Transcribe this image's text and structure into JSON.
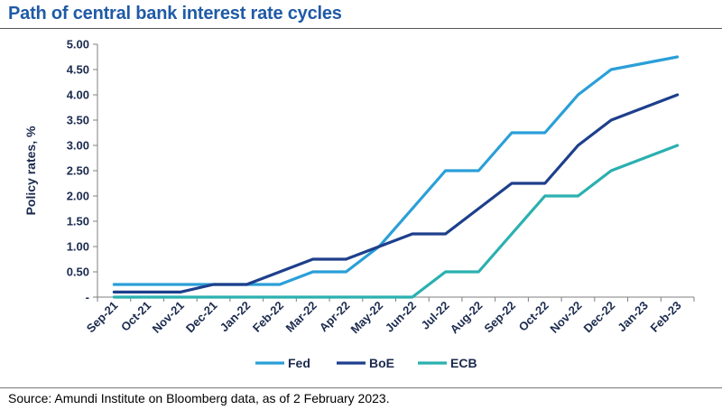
{
  "title": "Path of central bank interest rate cycles",
  "source": "Source: Amundi Institute on Bloomberg data, as of 2 February 2023.",
  "chart_data": {
    "type": "line",
    "title": "Path of central bank interest rate cycles",
    "xlabel": "",
    "ylabel": "Policy rates, %",
    "ylim": [
      0,
      5
    ],
    "yticks": [
      0,
      0.5,
      1.0,
      1.5,
      2.0,
      2.5,
      3.0,
      3.5,
      4.0,
      4.5,
      5.0
    ],
    "ytick_labels": [
      "-",
      "0.50",
      "1.00",
      "1.50",
      "2.00",
      "2.50",
      "3.00",
      "3.50",
      "4.00",
      "4.50",
      "5.00"
    ],
    "categories": [
      "Sep-21",
      "Oct-21",
      "Nov-21",
      "Dec-21",
      "Jan-22",
      "Feb-22",
      "Mar-22",
      "Apr-22",
      "May-22",
      "Jun-22",
      "Jul-22",
      "Aug-22",
      "Sep-22",
      "Oct-22",
      "Nov-22",
      "Dec-22",
      "Jan-23",
      "Feb-23"
    ],
    "legend_position": "bottom",
    "grid": false,
    "series": [
      {
        "name": "Fed",
        "color": "#2a9fd8",
        "values": [
          0.25,
          0.25,
          0.25,
          0.25,
          0.25,
          0.25,
          0.5,
          0.5,
          1.0,
          1.75,
          2.5,
          2.5,
          3.25,
          3.25,
          4.0,
          4.5,
          4.625,
          4.75
        ]
      },
      {
        "name": "BoE",
        "color": "#1d3f8c",
        "values": [
          0.1,
          0.1,
          0.1,
          0.25,
          0.25,
          0.5,
          0.75,
          0.75,
          1.0,
          1.25,
          1.25,
          1.75,
          2.25,
          2.25,
          3.0,
          3.5,
          3.75,
          4.0
        ]
      },
      {
        "name": "ECB",
        "color": "#2bb0b0",
        "values": [
          0,
          0,
          0,
          0,
          0,
          0,
          0,
          0,
          0,
          0,
          0.5,
          0.5,
          1.25,
          2.0,
          2.0,
          2.5,
          2.75,
          3.0
        ]
      }
    ]
  }
}
